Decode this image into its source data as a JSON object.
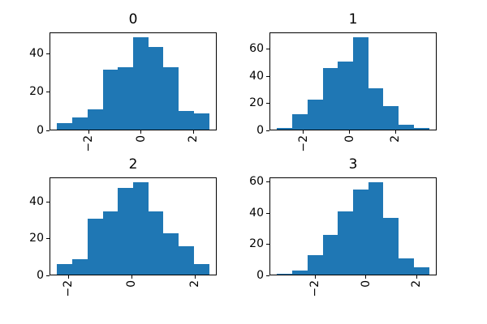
{
  "figure": {
    "background": "#ffffff",
    "text_color": "#000000",
    "spine_color": "#000000"
  },
  "chart_data": [
    {
      "type": "bar",
      "subtype": "histogram",
      "title": "0",
      "bar_color": "#1f77b4",
      "bins": {
        "start": -3.2,
        "end": 2.6,
        "count": 10
      },
      "values": [
        4,
        7,
        11,
        32,
        33,
        49,
        44,
        33,
        10,
        9
      ],
      "xlim": [
        -3.49,
        2.89
      ],
      "ylim": [
        0,
        51.45
      ],
      "xticks": {
        "values": [
          -2,
          0,
          2
        ],
        "labels": [
          "−2",
          "0",
          "2"
        ],
        "rotation": 90
      },
      "yticks": {
        "values": [
          0,
          20,
          40
        ],
        "labels": [
          "0",
          "20",
          "40"
        ]
      },
      "grid": false,
      "legend": null
    },
    {
      "type": "bar",
      "subtype": "histogram",
      "title": "1",
      "bar_color": "#1f77b4",
      "bins": {
        "start": -3.15,
        "end": 3.45,
        "count": 10
      },
      "values": [
        2,
        12,
        23,
        46,
        51,
        69,
        31,
        18,
        4,
        2
      ],
      "xlim": [
        -3.48,
        3.78
      ],
      "ylim": [
        0,
        72.45
      ],
      "xticks": {
        "values": [
          -2,
          0,
          2
        ],
        "labels": [
          "−2",
          "0",
          "2"
        ],
        "rotation": 90
      },
      "yticks": {
        "values": [
          0,
          20,
          40,
          60
        ],
        "labels": [
          "0",
          "20",
          "40",
          "60"
        ]
      },
      "grid": false,
      "legend": null
    },
    {
      "type": "bar",
      "subtype": "histogram",
      "title": "2",
      "bar_color": "#1f77b4",
      "bins": {
        "start": -2.35,
        "end": 2.45,
        "count": 10
      },
      "values": [
        6,
        9,
        31,
        35,
        48,
        51,
        35,
        23,
        16,
        6
      ],
      "xlim": [
        -2.59,
        2.69
      ],
      "ylim": [
        0,
        53.55
      ],
      "xticks": {
        "values": [
          -2,
          0,
          2
        ],
        "labels": [
          "−2",
          "0",
          "2"
        ],
        "rotation": 90
      },
      "yticks": {
        "values": [
          0,
          20,
          40
        ],
        "labels": [
          "0",
          "20",
          "40"
        ]
      },
      "grid": false,
      "legend": null
    },
    {
      "type": "bar",
      "subtype": "histogram",
      "title": "3",
      "bar_color": "#1f77b4",
      "bins": {
        "start": -3.5,
        "end": 2.5,
        "count": 10
      },
      "values": [
        1,
        3,
        13,
        26,
        41,
        55,
        60,
        37,
        11,
        5
      ],
      "xlim": [
        -3.8,
        2.8
      ],
      "ylim": [
        0,
        63
      ],
      "xticks": {
        "values": [
          -2,
          0,
          2
        ],
        "labels": [
          "−2",
          "0",
          "2"
        ],
        "rotation": 90
      },
      "yticks": {
        "values": [
          0,
          20,
          40,
          60
        ],
        "labels": [
          "0",
          "20",
          "40",
          "60"
        ]
      },
      "grid": false,
      "legend": null
    }
  ]
}
